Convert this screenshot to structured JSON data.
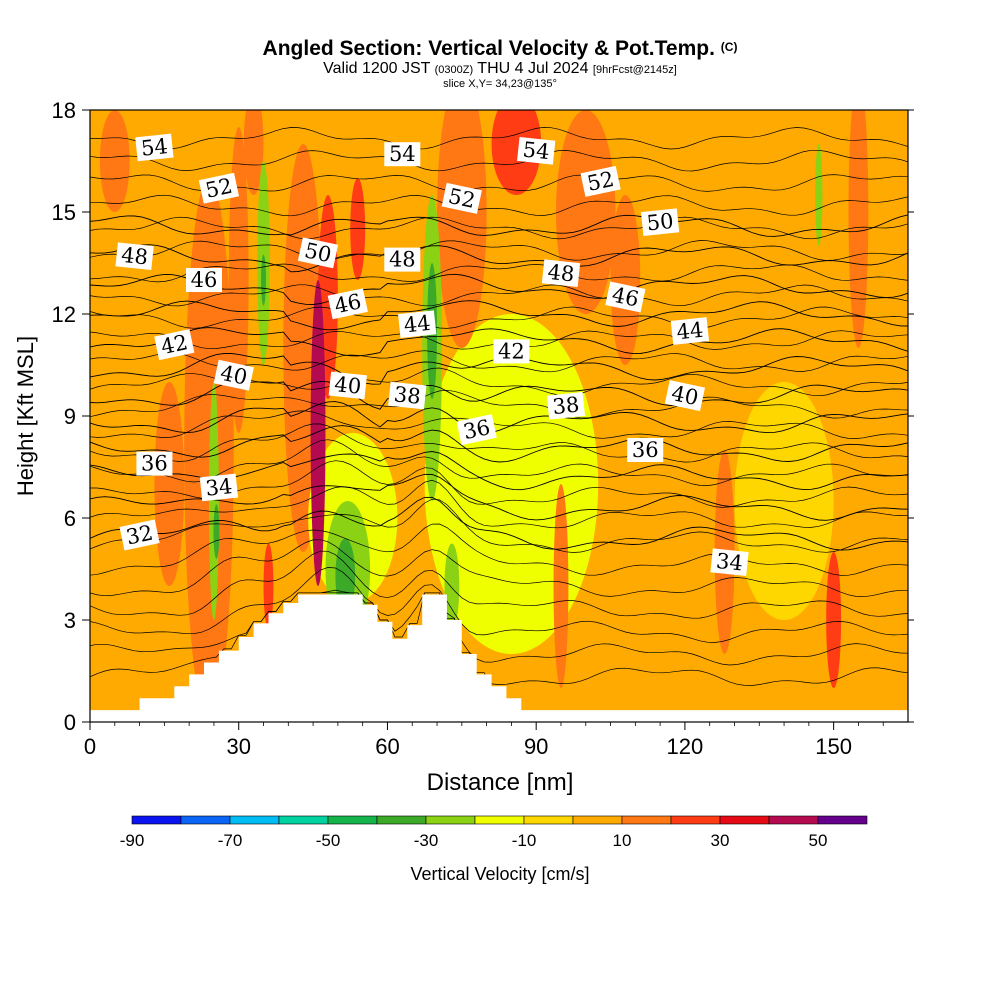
{
  "title": {
    "main": "Angled Section: Vertical Velocity & Pot.Temp.",
    "copyright": "(C)",
    "valid_prefix": "Valid 1200 JST",
    "utc": "(0300Z)",
    "valid_date": "THU 4 Jul 2024",
    "forecast": "[9hrFcst@2145z]",
    "slice": "slice X,Y= 34,23@135°"
  },
  "chart_data": {
    "type": "heatmap",
    "title": "Angled Section: Vertical Velocity & Pot.Temp.",
    "xlabel": "Distance [nm]",
    "ylabel": "Height [Kft MSL]",
    "xlim": [
      0,
      165
    ],
    "ylim": [
      0,
      18
    ],
    "x_ticks": [
      0,
      30,
      60,
      90,
      120,
      150
    ],
    "y_ticks": [
      0,
      3,
      6,
      9,
      12,
      15,
      18
    ],
    "grid": false,
    "colorbar": {
      "label": "Vertical Velocity [cm/s]",
      "tick_labels": [
        "-90",
        "-70",
        "-50",
        "-30",
        "-10",
        "10",
        "30",
        "50"
      ],
      "tick_values": [
        -90,
        -70,
        -50,
        -30,
        -10,
        10,
        30,
        50
      ],
      "bins": [
        -90,
        -80,
        -70,
        -60,
        -50,
        -40,
        -30,
        -20,
        -10,
        0,
        10,
        20,
        30,
        40,
        50,
        60
      ],
      "colors": [
        "#0a14f0",
        "#0a64f5",
        "#00bcf5",
        "#00d2a0",
        "#14b44b",
        "#3caa28",
        "#8cd214",
        "#f0ff00",
        "#ffd700",
        "#ffaa00",
        "#ff7814",
        "#ff3c14",
        "#e60a14",
        "#b40a50",
        "#64008c"
      ]
    },
    "background_velocity_bin": "0 to 10 cm/s",
    "velocity_features": [
      {
        "x": 46,
        "y": 8.5,
        "w": 3,
        "h": 9,
        "value": 45
      },
      {
        "x": 48,
        "y": 12.5,
        "w": 4,
        "h": 6,
        "value": 25
      },
      {
        "x": 54,
        "y": 14.5,
        "w": 3,
        "h": 3,
        "value": 25
      },
      {
        "x": 43,
        "y": 11,
        "w": 8,
        "h": 12,
        "value": 15
      },
      {
        "x": 24,
        "y": 8,
        "w": 10,
        "h": 16,
        "value": 15
      },
      {
        "x": 30,
        "y": 13,
        "w": 4,
        "h": 9,
        "value": 15
      },
      {
        "x": 16,
        "y": 7,
        "w": 6,
        "h": 6,
        "value": 15
      },
      {
        "x": 36,
        "y": 4,
        "w": 2,
        "h": 2.5,
        "value": 25
      },
      {
        "x": 25,
        "y": 6.5,
        "w": 2,
        "h": 7,
        "value": -25
      },
      {
        "x": 25.5,
        "y": 5.6,
        "w": 1.2,
        "h": 1.6,
        "value": -35
      },
      {
        "x": 35,
        "y": 13.5,
        "w": 2.5,
        "h": 6,
        "value": -25
      },
      {
        "x": 35,
        "y": 13,
        "w": 1,
        "h": 1.5,
        "value": -35
      },
      {
        "x": 69,
        "y": 11,
        "w": 4,
        "h": 9,
        "value": -25
      },
      {
        "x": 69,
        "y": 11.5,
        "w": 2,
        "h": 4,
        "value": -35
      },
      {
        "x": 52,
        "y": 4.5,
        "w": 9,
        "h": 4,
        "value": -25
      },
      {
        "x": 51.5,
        "y": 4.3,
        "w": 4,
        "h": 2.2,
        "value": -35
      },
      {
        "x": 73,
        "y": 4,
        "w": 3,
        "h": 2.5,
        "value": -25
      },
      {
        "x": 147,
        "y": 15.5,
        "w": 1.5,
        "h": 3,
        "value": -25
      },
      {
        "x": 53,
        "y": 6,
        "w": 18,
        "h": 5,
        "value": -15
      },
      {
        "x": 85,
        "y": 7,
        "w": 35,
        "h": 10,
        "value": -15
      },
      {
        "x": 140,
        "y": 6.5,
        "w": 20,
        "h": 7,
        "value": -5
      },
      {
        "x": 75,
        "y": 15,
        "w": 10,
        "h": 8,
        "value": 15
      },
      {
        "x": 86,
        "y": 17,
        "w": 10,
        "h": 3,
        "value": 25
      },
      {
        "x": 100,
        "y": 15,
        "w": 12,
        "h": 6,
        "value": 15
      },
      {
        "x": 108,
        "y": 13,
        "w": 6,
        "h": 5,
        "value": 15
      },
      {
        "x": 150,
        "y": 3,
        "w": 3,
        "h": 4,
        "value": 25
      },
      {
        "x": 128,
        "y": 5,
        "w": 4,
        "h": 6,
        "value": 15
      },
      {
        "x": 95,
        "y": 4,
        "w": 3,
        "h": 6,
        "value": 15
      },
      {
        "x": 155,
        "y": 15,
        "w": 4,
        "h": 8,
        "value": 15
      },
      {
        "x": 5,
        "y": 16.5,
        "w": 6,
        "h": 3,
        "value": 15
      },
      {
        "x": 33,
        "y": 17,
        "w": 4,
        "h": 3,
        "value": 15
      }
    ],
    "isentropes": [
      {
        "theta": 32,
        "y0": 5.4,
        "label": {
          "x": 10,
          "y": 5.5,
          "text": "32"
        }
      },
      {
        "theta": 34,
        "y0": 6.3,
        "label": {
          "x": 26,
          "y": 6.9,
          "text": "34"
        }
      },
      {
        "theta": 36,
        "y0": 7.2,
        "label": {
          "x": 13,
          "y": 7.6,
          "text": "36"
        }
      },
      {
        "theta": 38,
        "y0": 8.0,
        "label": {
          "x": 64,
          "y": 9.6,
          "text": "38"
        }
      },
      {
        "theta": 40,
        "y0": 8.8,
        "label": {
          "x": 29,
          "y": 10.2,
          "text": "40"
        }
      },
      {
        "theta": 42,
        "y0": 9.6,
        "label": {
          "x": 17,
          "y": 11.1,
          "text": "42"
        }
      },
      {
        "theta": 44,
        "y0": 10.4,
        "label": {
          "x": 66,
          "y": 11.7,
          "text": "44"
        }
      },
      {
        "theta": 46,
        "y0": 11.2,
        "label": {
          "x": 23,
          "y": 13.0,
          "text": "46"
        }
      },
      {
        "theta": 48,
        "y0": 12.0,
        "label": {
          "x": 9,
          "y": 13.7,
          "text": "48"
        }
      },
      {
        "theta": 50,
        "y0": 12.8,
        "label": {
          "x": 46,
          "y": 13.8,
          "text": "50"
        }
      },
      {
        "theta": 52,
        "y0": 13.7,
        "label": {
          "x": 26,
          "y": 15.7,
          "text": "52"
        }
      },
      {
        "theta": 54,
        "y0": 14.6,
        "label": {
          "x": 13,
          "y": 16.9,
          "text": "54"
        }
      }
    ],
    "extra_labels": [
      {
        "x": 63,
        "y": 16.7,
        "text": "54"
      },
      {
        "x": 90,
        "y": 16.8,
        "text": "54"
      },
      {
        "x": 75,
        "y": 15.4,
        "text": "52"
      },
      {
        "x": 103,
        "y": 15.9,
        "text": "52"
      },
      {
        "x": 115,
        "y": 14.7,
        "text": "50"
      },
      {
        "x": 63,
        "y": 13.6,
        "text": "48"
      },
      {
        "x": 95,
        "y": 13.2,
        "text": "48"
      },
      {
        "x": 108,
        "y": 12.5,
        "text": "46"
      },
      {
        "x": 52,
        "y": 12.3,
        "text": "46"
      },
      {
        "x": 121,
        "y": 11.5,
        "text": "44"
      },
      {
        "x": 85,
        "y": 10.9,
        "text": "42"
      },
      {
        "x": 52,
        "y": 9.9,
        "text": "40"
      },
      {
        "x": 120,
        "y": 9.6,
        "text": "40"
      },
      {
        "x": 78,
        "y": 8.6,
        "text": "36"
      },
      {
        "x": 96,
        "y": 9.3,
        "text": "38"
      },
      {
        "x": 112,
        "y": 8.0,
        "text": "36"
      },
      {
        "x": 129,
        "y": 4.7,
        "text": "34"
      }
    ],
    "terrain": [
      [
        0,
        0.35
      ],
      [
        10,
        0.35
      ],
      [
        10,
        0.7
      ],
      [
        17,
        0.7
      ],
      [
        17,
        1.05
      ],
      [
        20,
        1.05
      ],
      [
        20,
        1.4
      ],
      [
        23,
        1.4
      ],
      [
        23,
        1.75
      ],
      [
        26,
        1.75
      ],
      [
        26,
        2.1
      ],
      [
        30,
        2.1
      ],
      [
        30,
        2.5
      ],
      [
        33,
        2.5
      ],
      [
        33,
        2.9
      ],
      [
        36,
        2.9
      ],
      [
        36,
        3.2
      ],
      [
        39,
        3.2
      ],
      [
        39,
        3.5
      ],
      [
        42,
        3.5
      ],
      [
        42,
        3.75
      ],
      [
        55,
        3.75
      ],
      [
        55,
        3.45
      ],
      [
        58,
        3.45
      ],
      [
        58,
        2.95
      ],
      [
        61,
        2.95
      ],
      [
        61,
        2.45
      ],
      [
        64,
        2.45
      ],
      [
        64,
        2.85
      ],
      [
        67,
        2.85
      ],
      [
        67,
        3.75
      ],
      [
        72,
        3.75
      ],
      [
        72,
        3.0
      ],
      [
        75,
        3.0
      ],
      [
        75,
        2.0
      ],
      [
        78,
        2.0
      ],
      [
        78,
        1.4
      ],
      [
        81,
        1.4
      ],
      [
        81,
        1.05
      ],
      [
        84,
        1.05
      ],
      [
        84,
        0.7
      ],
      [
        87,
        0.7
      ],
      [
        87,
        0.35
      ],
      [
        165,
        0.35
      ]
    ]
  }
}
